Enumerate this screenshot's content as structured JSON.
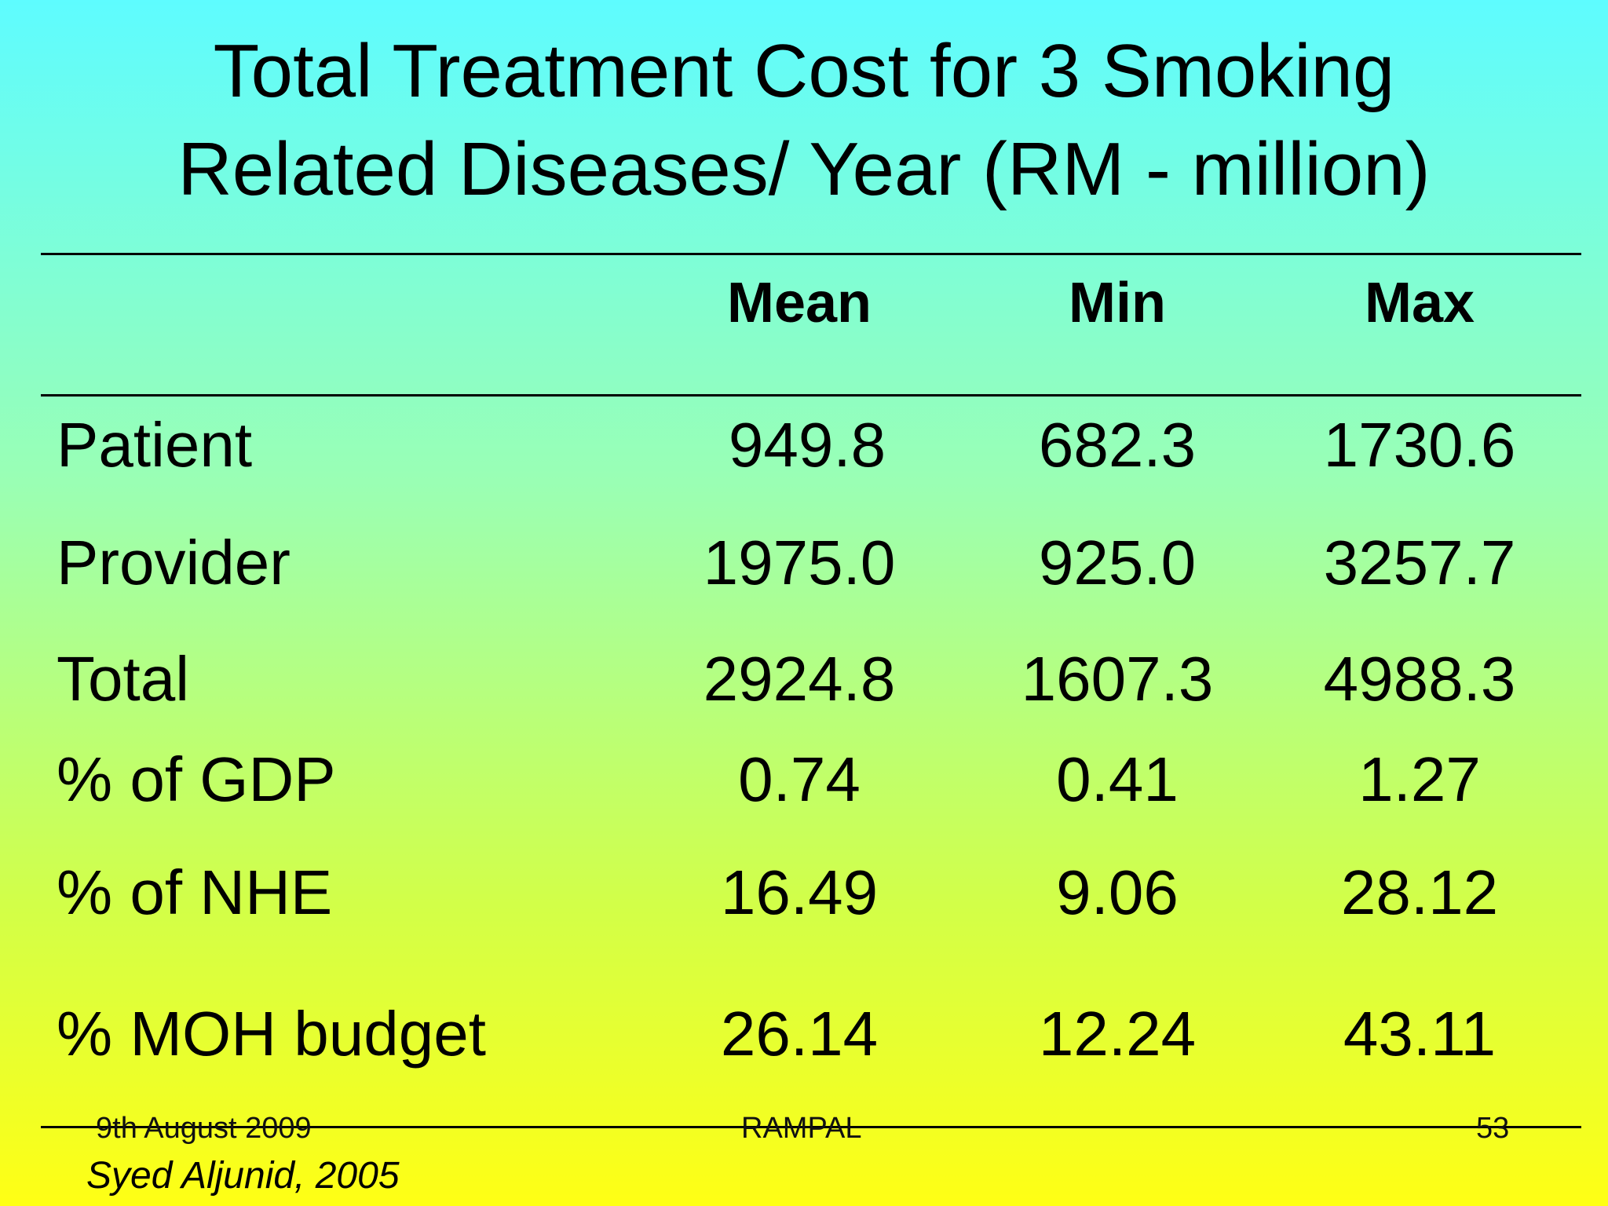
{
  "title": {
    "line1": "Total Treatment Cost for 3 Smoking",
    "line2": "Related Diseases/ Year (RM - million)"
  },
  "table": {
    "columns": [
      "Mean",
      "Min",
      "Max"
    ],
    "rows": [
      {
        "label": "Patient",
        "values": [
          "949.8",
          "682.3",
          "1730.6"
        ]
      },
      {
        "label": "Provider",
        "values": [
          "1975.0",
          "925.0",
          "3257.7"
        ]
      },
      {
        "label": "Total",
        "values": [
          "2924.8",
          "1607.3",
          "4988.3"
        ]
      },
      {
        "label": "% of GDP",
        "values": [
          "0.74",
          "0.41",
          "1.27"
        ]
      },
      {
        "label": "% of NHE",
        "values": [
          "16.49",
          "9.06",
          "28.12"
        ]
      },
      {
        "label": "% MOH budget",
        "values": [
          "26.14",
          "12.24",
          "43.11"
        ]
      }
    ]
  },
  "footer": {
    "date": "9th August 2009",
    "center": "RAMPAL",
    "page": "53"
  },
  "citation": "Syed Aljunid, 2005"
}
